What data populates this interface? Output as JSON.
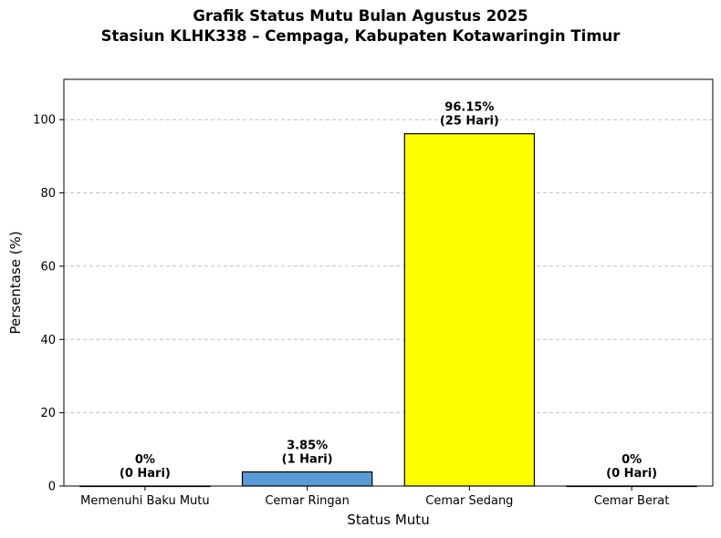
{
  "chart_data": {
    "type": "bar",
    "title": "Grafik Status Mutu Bulan Agustus 2025",
    "subtitle": "Stasiun KLHK338 – Cempaga, Kabupaten Kotawaringin Timur",
    "xlabel": "Status Mutu",
    "ylabel": "Persentase (%)",
    "categories": [
      "Memenuhi Baku Mutu",
      "Cemar Ringan",
      "Cemar Sedang",
      "Cemar Berat"
    ],
    "values": [
      0,
      3.85,
      96.15,
      0
    ],
    "bar_labels": [
      [
        "0%",
        "(0 Hari)"
      ],
      [
        "3.85%",
        "(1 Hari)"
      ],
      [
        "96.15%",
        "(25 Hari)"
      ],
      [
        "0%",
        "(0 Hari)"
      ]
    ],
    "bar_colors": [
      "#2e8b3c",
      "#5b9bd5",
      "#ffff00",
      "#d9262b"
    ],
    "ylim": [
      0,
      111
    ],
    "yticks": [
      0,
      20,
      40,
      60,
      80,
      100
    ],
    "grid": "y-dashed",
    "legend": "none"
  }
}
